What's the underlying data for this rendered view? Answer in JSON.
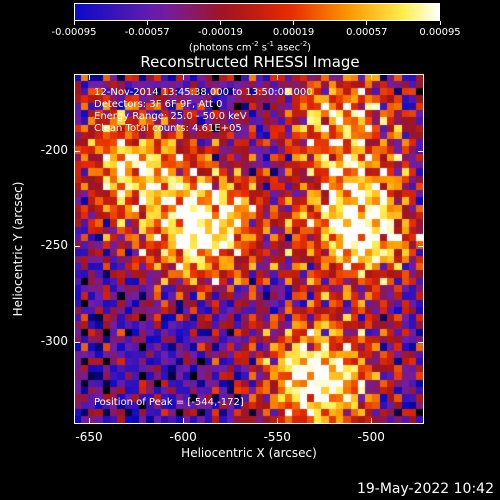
{
  "colorbar": {
    "ticks": [
      "-0.00095",
      "-0.00057",
      "-0.00019",
      "0.00019",
      "0.00057",
      "0.00095"
    ],
    "units_text": "(photons cm",
    "units_exp1": "-2",
    "units_mid1": " s",
    "units_exp2": "-1",
    "units_mid2": " asec",
    "units_exp3": "-2",
    "units_end": ")"
  },
  "chart_data": {
    "type": "heatmap",
    "title": "Reconstructed RHESSI Image",
    "xlabel": "Heliocentric X (arcsec)",
    "ylabel": "Heliocentric Y (arcsec)",
    "xlim": [
      -658,
      -472
    ],
    "ylim": [
      -343,
      -160
    ],
    "xticks": [
      "-650",
      "-600",
      "-550",
      "-500"
    ],
    "yticks": [
      "-200",
      "-250",
      "-300"
    ],
    "colormap": "rainbow/hot",
    "zlim": [
      -0.00095,
      0.00095
    ],
    "grid": false,
    "peak_position": [
      -544,
      -172
    ],
    "bright_regions": [
      {
        "x": -590,
        "y": -240,
        "level": "high"
      },
      {
        "x": -505,
        "y": -240,
        "level": "high"
      },
      {
        "x": -528,
        "y": -320,
        "level": "high"
      },
      {
        "x": -630,
        "y": -205,
        "level": "medium"
      },
      {
        "x": -515,
        "y": -185,
        "level": "medium"
      }
    ]
  },
  "annotations": {
    "line1": "12-Nov-2014 13:45:38.000 to 13:50:08.000",
    "line2": "Detectors: 3F 6F 9F, Att 0",
    "line3": "Energy Range: 25.0 - 50.0 keV",
    "line4": "Clean     Total counts: 4.61E+05",
    "peak": "Position of Peak = [-544,-172]"
  },
  "footer": {
    "date": "19-May-2022 10:42"
  }
}
